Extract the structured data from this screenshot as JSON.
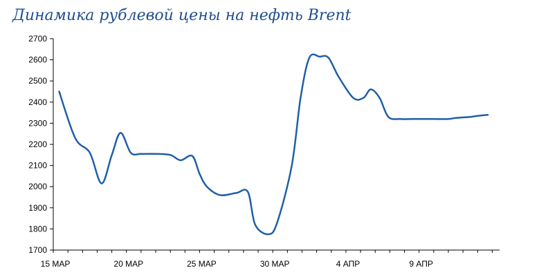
{
  "chart_data": {
    "type": "line",
    "title": "Динамика рублевой цены на нефть Brent",
    "xlabel": "",
    "ylabel": "",
    "ylim": [
      1700,
      2700
    ],
    "yticks": [
      "2700",
      "2600",
      "2500",
      "2400",
      "2300",
      "2200",
      "2100",
      "2000",
      "1900",
      "1800",
      "1700"
    ],
    "xticks": [
      "15 МАР",
      "20 МАР",
      "25 МАР",
      "30 МАР",
      "4 АПР",
      "9 АПР"
    ],
    "xrange_days": [
      0,
      30.5
    ],
    "grid": false,
    "legend": "none",
    "line_color": "#1f5fa6",
    "series": [
      {
        "x": [
          0.4,
          1.5,
          2.5,
          3.3,
          4.0,
          4.6,
          5.3,
          6.0,
          7.0,
          8.0,
          8.7,
          9.5,
          10.0,
          10.5,
          11.4,
          12.5,
          13.3,
          13.8,
          14.7,
          15.3,
          16.3,
          16.9,
          17.5,
          18.2,
          18.8,
          19.5,
          20.5,
          21.2,
          21.7,
          22.3,
          22.9,
          23.7,
          24.5,
          25.3,
          26.0,
          27.0,
          27.5,
          28.5,
          29.0,
          29.7
        ],
        "y": [
          2450,
          2230,
          2160,
          2015,
          2150,
          2255,
          2160,
          2155,
          2155,
          2150,
          2125,
          2145,
          2060,
          2000,
          1960,
          1970,
          1975,
          1820,
          1775,
          1830,
          2100,
          2420,
          2610,
          2615,
          2610,
          2520,
          2420,
          2420,
          2460,
          2420,
          2330,
          2320,
          2320,
          2320,
          2320,
          2320,
          2325,
          2330,
          2335,
          2340
        ]
      }
    ]
  }
}
